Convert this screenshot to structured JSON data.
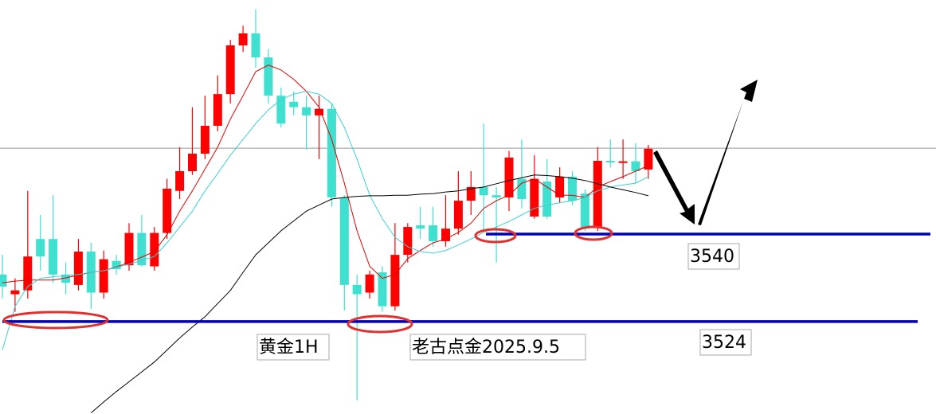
{
  "chart_data": {
    "type": "candlestick",
    "up_color": "#ff0000",
    "down_color": "#40e0d0",
    "ylim": [
      3507.1,
      3582.8
    ],
    "open": [
      3532.6,
      3529.0,
      3529.7,
      3539.1,
      3539.1,
      3532.6,
      3530.7,
      3536.8,
      3529.3,
      3535.1,
      3534.3,
      3540.2,
      3534.1,
      3540.2,
      3547.9,
      3551.5,
      3554.7,
      3559.8,
      3565.6,
      3574.5,
      3576.7,
      3572.3,
      3565.3,
      3564.2,
      3563.2,
      3561.7,
      3562.9,
      3546.7,
      3530.7,
      3529.3,
      3533.0,
      3526.8,
      3536.2,
      3541.6,
      3541.6,
      3538.7,
      3541.0,
      3546.1,
      3548.6,
      3547.1,
      3546.7,
      3550.1,
      3543.2,
      3549.6,
      3546.7,
      3550.5,
      3547.4,
      3541.3,
      3553.4,
      3553.0,
      3553.3,
      3551.8
    ],
    "high": [
      3536.2,
      3531.9,
      3547.9,
      3543.5,
      3547.1,
      3534.8,
      3539.1,
      3538.4,
      3537.0,
      3536.2,
      3542.0,
      3543.5,
      3541.3,
      3550.1,
      3555.9,
      3563.2,
      3565.3,
      3569.0,
      3575.5,
      3578.1,
      3581.1,
      3573.8,
      3566.8,
      3566.1,
      3565.3,
      3565.3,
      3563.9,
      3547.1,
      3532.6,
      3533.3,
      3534.1,
      3542.0,
      3542.0,
      3545.0,
      3545.0,
      3547.1,
      3551.5,
      3551.5,
      3560.2,
      3548.6,
      3555.2,
      3557.3,
      3554.4,
      3553.7,
      3552.2,
      3551.5,
      3548.2,
      3555.9,
      3557.3,
      3557.3,
      3556.6,
      3556.3
    ],
    "low": [
      3528.2,
      3525.8,
      3528.2,
      3533.3,
      3531.1,
      3529.0,
      3529.7,
      3526.3,
      3528.2,
      3532.6,
      3533.3,
      3534.1,
      3533.3,
      3539.1,
      3546.4,
      3550.8,
      3553.7,
      3558.8,
      3563.9,
      3573.3,
      3570.4,
      3563.9,
      3559.5,
      3561.7,
      3555.4,
      3553.7,
      3545.0,
      3526.0,
      3509.6,
      3528.2,
      3525.8,
      3526.0,
      3534.8,
      3539.1,
      3537.7,
      3537.7,
      3539.9,
      3543.5,
      3540.6,
      3534.8,
      3544.2,
      3544.7,
      3542.8,
      3542.8,
      3545.7,
      3545.3,
      3540.6,
      3540.6,
      3552.2,
      3550.1,
      3549.3,
      3550.1
    ],
    "close": [
      3530.4,
      3529.7,
      3535.9,
      3535.9,
      3532.6,
      3531.1,
      3536.8,
      3529.3,
      3535.4,
      3533.6,
      3540.2,
      3534.3,
      3540.2,
      3548.3,
      3551.5,
      3554.7,
      3559.8,
      3565.6,
      3574.5,
      3576.7,
      3572.3,
      3565.3,
      3560.2,
      3563.2,
      3561.7,
      3562.9,
      3546.7,
      3530.7,
      3529.0,
      3532.6,
      3526.8,
      3536.2,
      3541.3,
      3541.0,
      3538.7,
      3541.0,
      3546.1,
      3548.6,
      3547.1,
      3546.7,
      3554.0,
      3546.4,
      3550.1,
      3543.2,
      3550.5,
      3546.1,
      3541.3,
      3553.4,
      3553.1,
      3553.3,
      3551.5,
      3555.6
    ],
    "series": [
      {
        "color": "#e00000",
        "values": [
          3531.1,
          3531.4,
          3531.6,
          3531.6,
          3531.6,
          3532.0,
          3532.5,
          3533.0,
          3533.3,
          3534.0,
          3534.8,
          3535.8,
          3536.8,
          3539.9,
          3544.2,
          3547.9,
          3551.9,
          3555.9,
          3561.0,
          3565.3,
          3569.7,
          3570.9,
          3570.0,
          3568.3,
          3566.1,
          3563.2,
          3557.3,
          3549.3,
          3540.6,
          3534.1,
          3531.9,
          3532.6,
          3535.5,
          3537.0,
          3538.4,
          3539.1,
          3540.3,
          3542.0,
          3544.7,
          3546.1,
          3547.1,
          3549.3,
          3550.1,
          3548.6,
          3547.1,
          3547.1,
          3546.7,
          3548.6,
          3549.6,
          3550.5,
          3551.5,
          3552.5
        ]
      },
      {
        "color": "#40d0d0",
        "values": [
          3518.8,
          3526.8,
          3530.4,
          3531.9,
          3532.2,
          3532.4,
          3532.6,
          3533.0,
          3533.3,
          3533.9,
          3534.5,
          3535.2,
          3535.9,
          3538.4,
          3541.3,
          3544.2,
          3547.9,
          3551.1,
          3554.4,
          3557.3,
          3560.2,
          3562.7,
          3564.6,
          3565.6,
          3566.1,
          3565.6,
          3563.9,
          3559.5,
          3553.7,
          3547.1,
          3542.8,
          3539.4,
          3537.7,
          3536.8,
          3536.5,
          3537.0,
          3538.0,
          3539.1,
          3540.3,
          3541.3,
          3542.3,
          3543.5,
          3544.7,
          3545.3,
          3545.7,
          3546.1,
          3546.7,
          3547.9,
          3548.6,
          3549.0,
          3549.3,
          3550.5
        ]
      },
      {
        "color": "#000000",
        "values": [
          null,
          null,
          null,
          null,
          null,
          null,
          null,
          3507.3,
          3509.3,
          3511.2,
          3513.0,
          3514.8,
          3516.6,
          3518.8,
          3521.0,
          3523.0,
          3524.9,
          3527.3,
          3529.7,
          3533.0,
          3536.2,
          3538.4,
          3540.6,
          3542.4,
          3544.2,
          3545.3,
          3546.4,
          3546.7,
          3546.9,
          3547.0,
          3547.0,
          3547.1,
          3547.1,
          3547.3,
          3547.4,
          3547.7,
          3547.9,
          3548.3,
          3548.6,
          3549.2,
          3549.8,
          3550.3,
          3550.8,
          3550.7,
          3550.5,
          3550.2,
          3549.8,
          3549.2,
          3548.6,
          3548.1,
          3547.6,
          3547.0
        ]
      }
    ],
    "price_line": 3555.7,
    "price_line_color": "#999999",
    "levels": [
      3540,
      3524
    ],
    "level_color": "#0000b4",
    "annotations": [
      "黄金1H",
      "老古点金2025.9.5"
    ]
  }
}
